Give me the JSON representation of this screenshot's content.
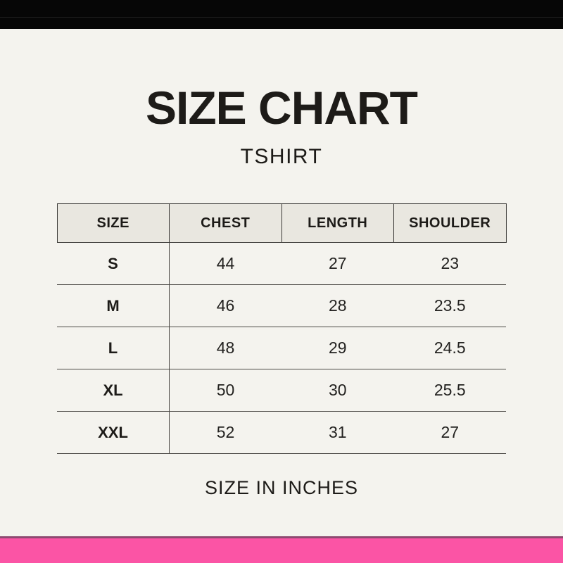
{
  "colors": {
    "background": "#f4f3ee",
    "top_bar": "#060606",
    "header_cell_fill": "#e9e7e0",
    "table_line": "#4b4945",
    "bottom_bar": "#fb54a5",
    "bottom_bar_edge": "#8d4a70",
    "text": "#1d1b18"
  },
  "header": {
    "title": "SIZE CHART",
    "subtitle": "TSHIRT"
  },
  "chart_data": {
    "type": "table",
    "title": "SIZE CHART",
    "subtitle": "TSHIRT",
    "columns": [
      "SIZE",
      "CHEST",
      "LENGTH",
      "SHOULDER"
    ],
    "rows": [
      [
        "S",
        "44",
        "27",
        "23"
      ],
      [
        "M",
        "46",
        "28",
        "23.5"
      ],
      [
        "L",
        "48",
        "29",
        "24.5"
      ],
      [
        "XL",
        "50",
        "30",
        "25.5"
      ],
      [
        "XXL",
        "52",
        "31",
        "27"
      ]
    ],
    "units_note": "SIZE IN INCHES"
  },
  "footer": {
    "note": "SIZE IN INCHES"
  }
}
